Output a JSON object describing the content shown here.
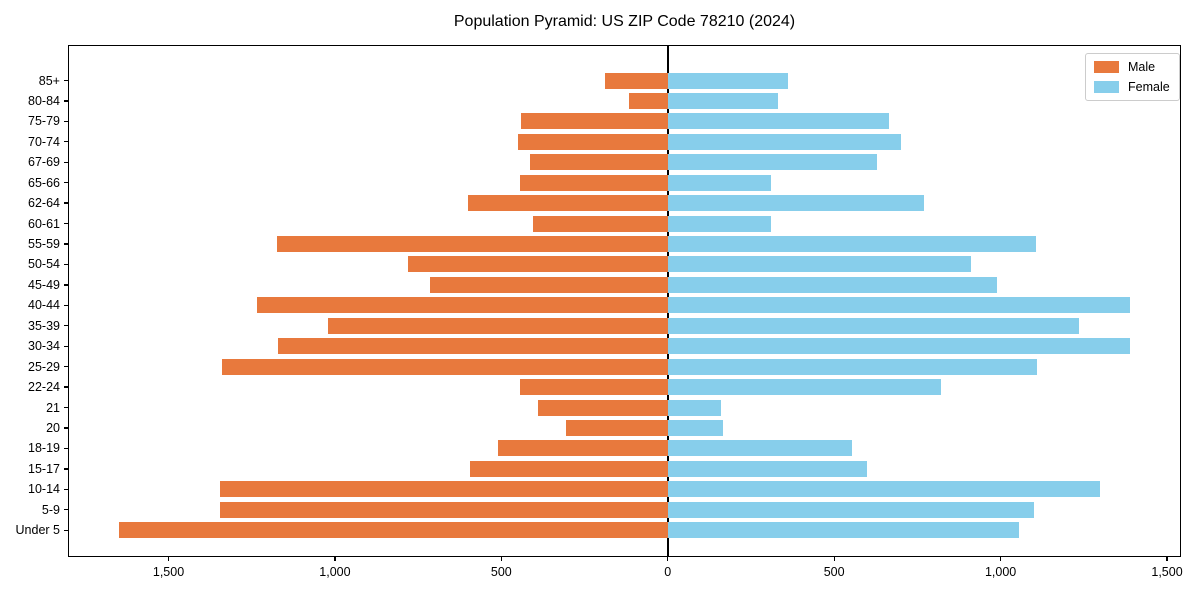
{
  "colors": {
    "male": "#E8793D",
    "female": "#87CEEB",
    "axis": "#000000",
    "legend_border": "#cccccc",
    "background": "#ffffff"
  },
  "chart_data": {
    "type": "bar",
    "subtype": "population-pyramid",
    "orientation": "horizontal",
    "title": "Population Pyramid: US ZIP Code 78210 (2024)",
    "xlabel": "",
    "ylabel": "",
    "grid": false,
    "legend_position": "upper right",
    "categories_top_to_bottom": [
      "85+",
      "80-84",
      "75-79",
      "70-74",
      "67-69",
      "65-66",
      "62-64",
      "60-61",
      "55-59",
      "50-54",
      "45-49",
      "40-44",
      "35-39",
      "30-34",
      "25-29",
      "22-24",
      "21",
      "20",
      "18-19",
      "15-17",
      "10-14",
      "5-9",
      "Under 5"
    ],
    "series": [
      {
        "name": "Male",
        "side": "left",
        "color": "#E8793D",
        "values": [
          190,
          115,
          440,
          450,
          415,
          445,
          600,
          405,
          1175,
          780,
          715,
          1235,
          1020,
          1170,
          1340,
          445,
          390,
          305,
          510,
          595,
          1345,
          1345,
          1650
        ]
      },
      {
        "name": "Female",
        "side": "right",
        "color": "#87CEEB",
        "values": [
          360,
          330,
          665,
          700,
          630,
          310,
          770,
          310,
          1105,
          910,
          990,
          1390,
          1235,
          1390,
          1110,
          820,
          160,
          165,
          555,
          600,
          1300,
          1100,
          1055
        ]
      }
    ],
    "x_tick_values": [
      -1500,
      -1000,
      -500,
      0,
      500,
      1000,
      1500
    ],
    "x_tick_labels": [
      "1,500",
      "1,000",
      "500",
      "0",
      "500",
      "1,000",
      "1,500"
    ],
    "xlim": [
      -1802,
      1542
    ],
    "zero_reference_line": true
  }
}
